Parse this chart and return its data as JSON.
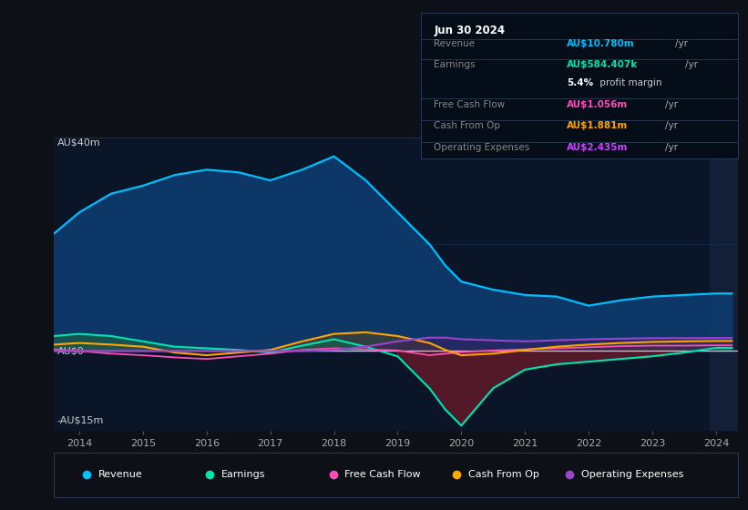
{
  "bg_color": "#0d1117",
  "chart_bg": "#0a1628",
  "grid_color": "#1e3a5f",
  "zero_line_color": "#c0c8d8",
  "years": [
    2013.6,
    2014.0,
    2014.5,
    2015.0,
    2015.5,
    2016.0,
    2016.5,
    2017.0,
    2017.5,
    2018.0,
    2018.5,
    2019.0,
    2019.5,
    2019.75,
    2020.0,
    2020.5,
    2021.0,
    2021.5,
    2022.0,
    2022.5,
    2023.0,
    2023.5,
    2024.0,
    2024.25
  ],
  "revenue": [
    22,
    26,
    29.5,
    31,
    33,
    34,
    33.5,
    32,
    34,
    36.5,
    32,
    26,
    20,
    16,
    13,
    11.5,
    10.5,
    10.2,
    8.5,
    9.5,
    10.2,
    10.5,
    10.78,
    10.78
  ],
  "earnings": [
    2.8,
    3.2,
    2.8,
    1.8,
    0.8,
    0.5,
    0.2,
    -0.3,
    1.0,
    2.2,
    0.8,
    -1.0,
    -7.0,
    -11.0,
    -14.0,
    -7.0,
    -3.5,
    -2.5,
    -2.0,
    -1.5,
    -1.0,
    -0.3,
    0.58,
    0.58
  ],
  "free_cash_flow": [
    0.3,
    0.0,
    -0.5,
    -0.8,
    -1.2,
    -1.5,
    -1.0,
    -0.5,
    0.2,
    0.5,
    0.3,
    0.1,
    -0.8,
    -0.5,
    -0.2,
    0.1,
    0.3,
    0.5,
    0.7,
    0.9,
    1.0,
    1.0,
    1.056,
    1.056
  ],
  "cash_from_op": [
    1.2,
    1.5,
    1.2,
    0.8,
    -0.3,
    -0.8,
    -0.3,
    0.2,
    1.8,
    3.2,
    3.5,
    2.8,
    1.5,
    0.2,
    -0.8,
    -0.5,
    0.2,
    0.8,
    1.2,
    1.5,
    1.7,
    1.8,
    1.881,
    1.881
  ],
  "op_expenses": [
    0.0,
    0.0,
    0.0,
    0.0,
    0.0,
    0.0,
    0.0,
    0.0,
    0.0,
    0.2,
    0.8,
    1.8,
    2.5,
    2.5,
    2.2,
    2.0,
    1.8,
    2.0,
    2.2,
    2.3,
    2.4,
    2.4,
    2.435,
    2.435
  ],
  "revenue_color": "#00bfff",
  "revenue_fill": "#0d3b6e",
  "earnings_color": "#00e5b0",
  "earnings_fill_pos": "#1a5c4a",
  "earnings_fill_neg": "#5c1a2a",
  "fcf_color": "#ff4db8",
  "cfo_color": "#ffa500",
  "opex_color": "#9b44cc",
  "highlight_bg": "#1a2744",
  "ylim": [
    -15,
    40
  ],
  "xlim": [
    2013.6,
    2024.35
  ],
  "xticks": [
    2014,
    2015,
    2016,
    2017,
    2018,
    2019,
    2020,
    2021,
    2022,
    2023,
    2024
  ],
  "info_box": {
    "date": "Jun 30 2024",
    "rows": [
      {
        "label": "Revenue",
        "value": "AU$10.780m",
        "unit": "/yr",
        "val_color": "#00bfff",
        "label_color": "#888888"
      },
      {
        "label": "Earnings",
        "value": "AU$584.407k",
        "unit": "/yr",
        "val_color": "#00e5b0",
        "label_color": "#888888"
      },
      {
        "label": "",
        "value": "5.4%",
        "unit": " profit margin",
        "val_color": "#ffffff",
        "label_color": "#888888"
      },
      {
        "label": "Free Cash Flow",
        "value": "AU$1.056m",
        "unit": "/yr",
        "val_color": "#ff4db8",
        "label_color": "#888888"
      },
      {
        "label": "Cash From Op",
        "value": "AU$1.881m",
        "unit": "/yr",
        "val_color": "#ffa500",
        "label_color": "#888888"
      },
      {
        "label": "Operating Expenses",
        "value": "AU$2.435m",
        "unit": "/yr",
        "val_color": "#cc44ff",
        "label_color": "#888888"
      }
    ]
  },
  "legend_items": [
    {
      "label": "Revenue",
      "color": "#00bfff"
    },
    {
      "label": "Earnings",
      "color": "#00e5b0"
    },
    {
      "label": "Free Cash Flow",
      "color": "#ff4db8"
    },
    {
      "label": "Cash From Op",
      "color": "#ffa500"
    },
    {
      "label": "Operating Expenses",
      "color": "#9b44cc"
    }
  ]
}
